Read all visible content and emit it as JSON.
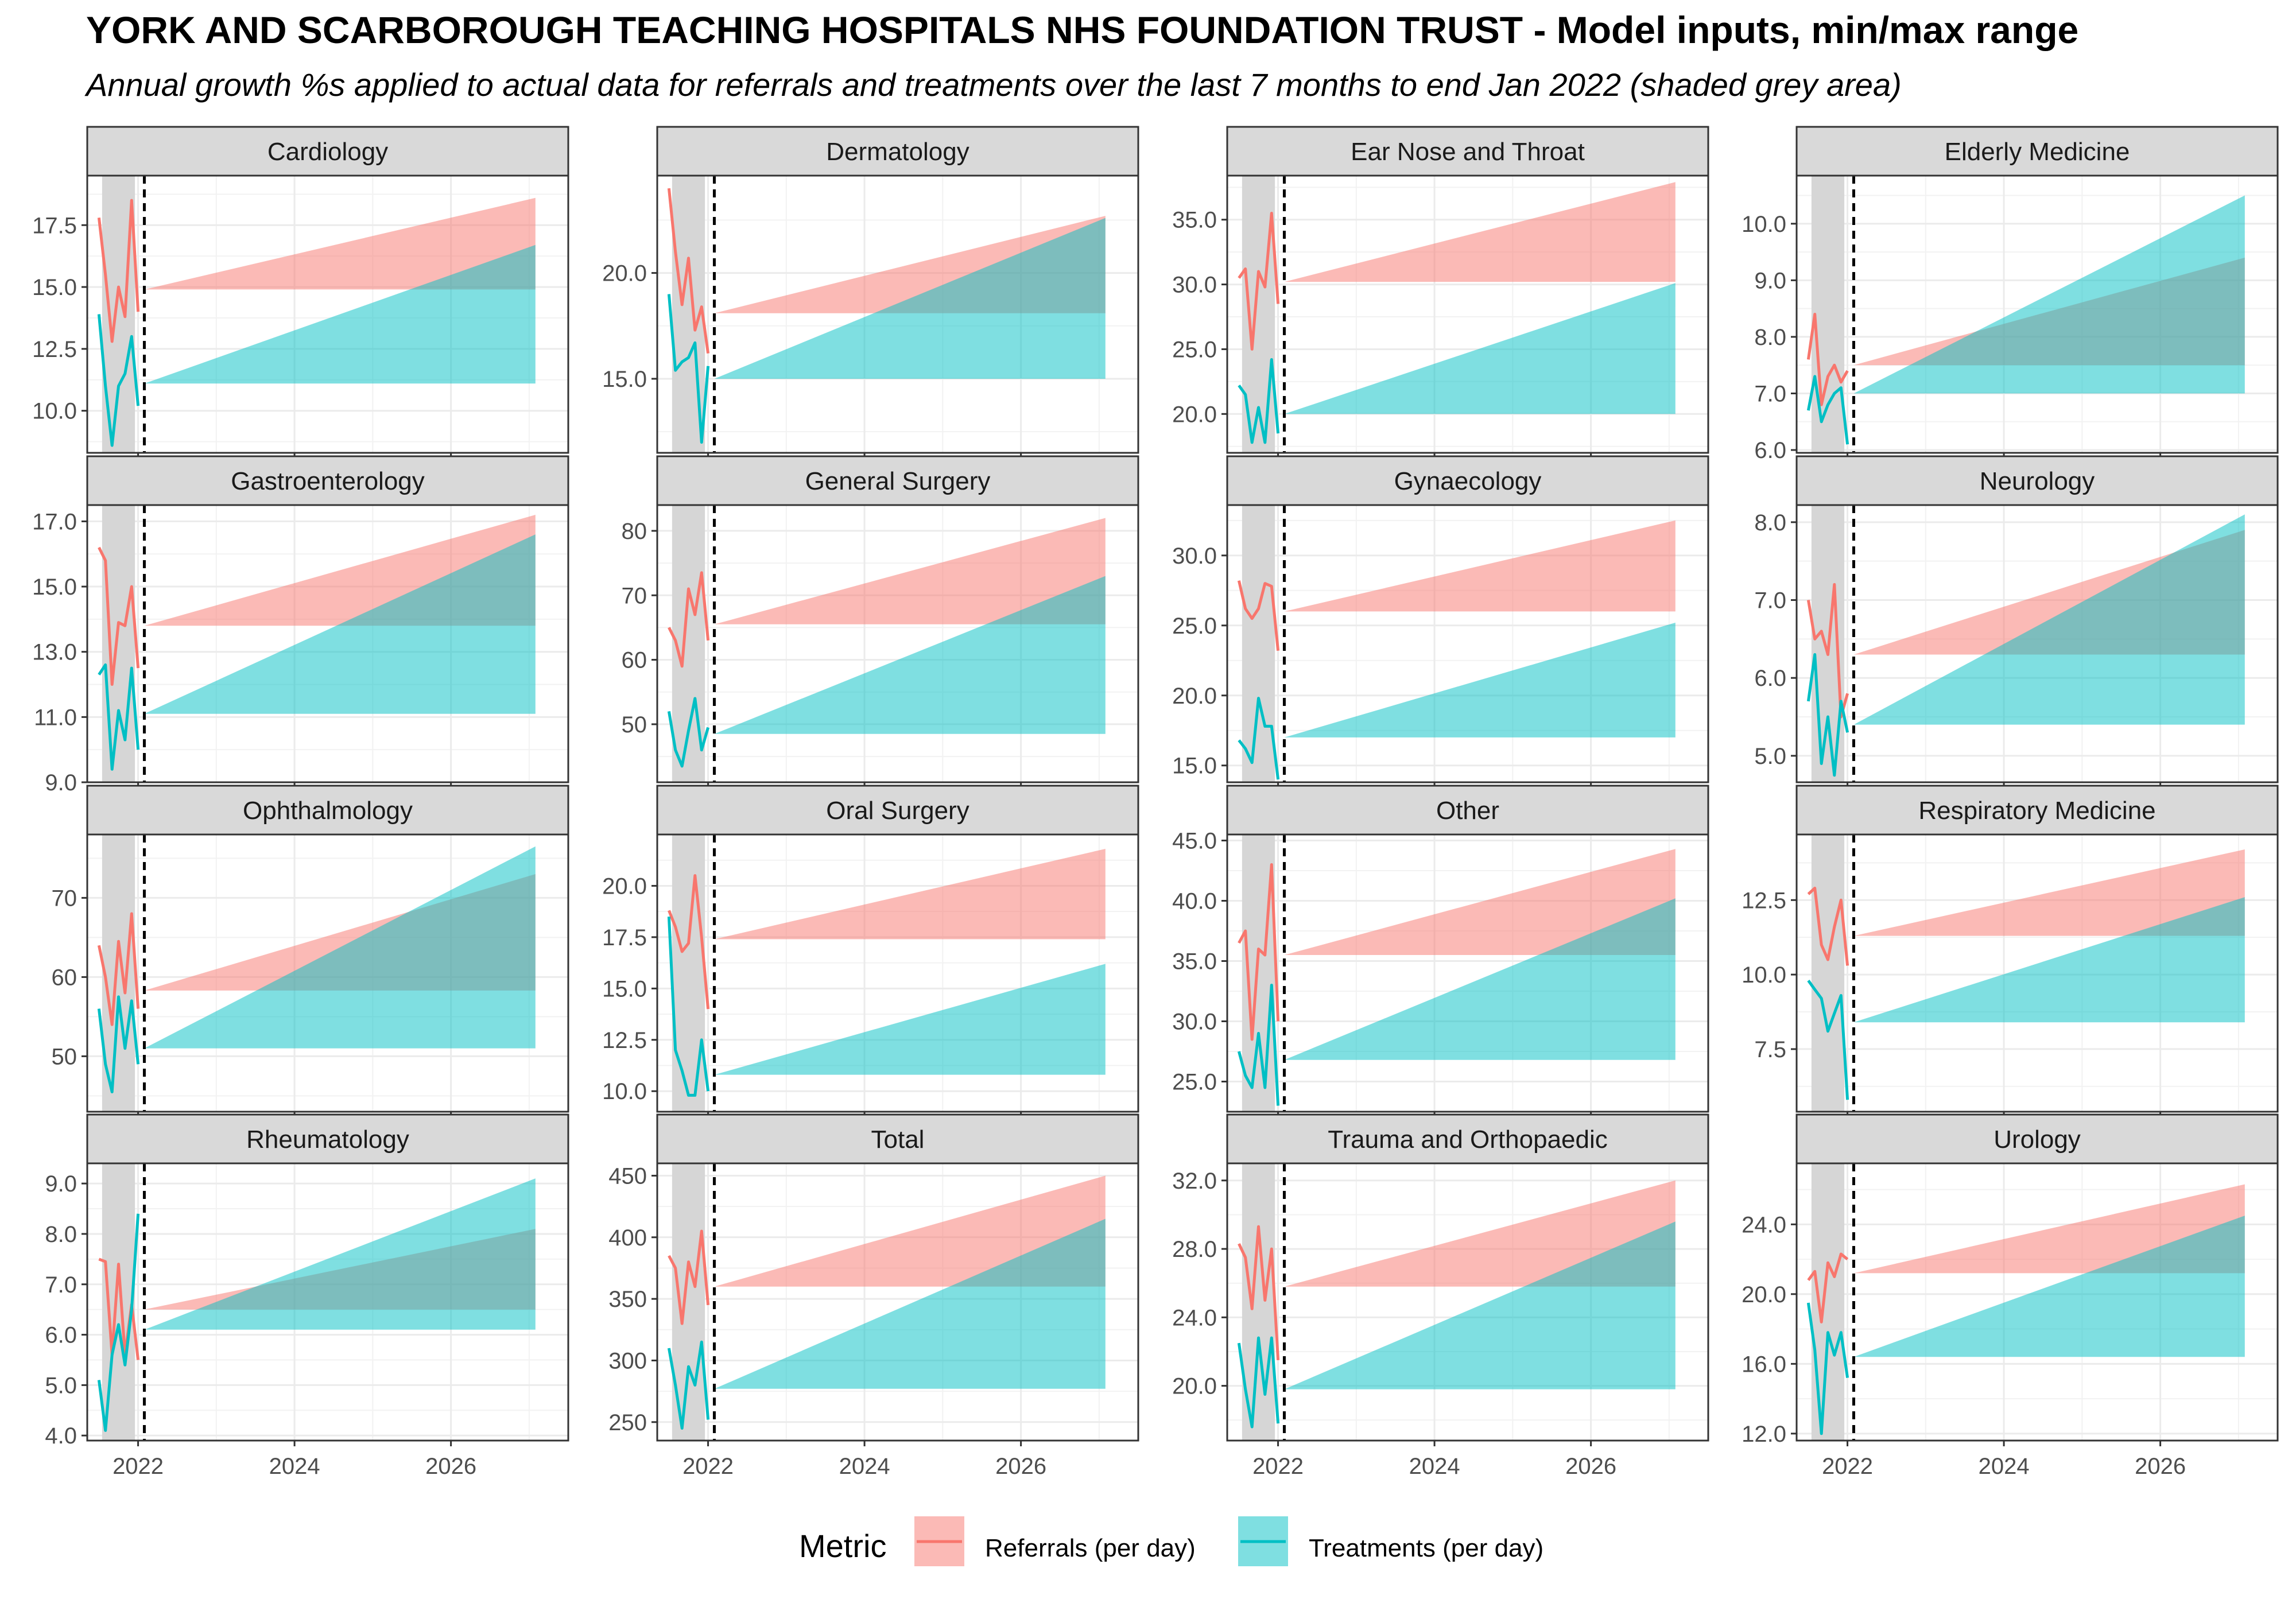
{
  "title": "YORK AND SCARBOROUGH TEACHING HOSPITALS NHS FOUNDATION TRUST - Model inputs, min/max range",
  "subtitle": "Annual growth %s applied to actual data for referrals and treatments over the last 7 months to end Jan 2022 (shaded grey area)",
  "legend": {
    "title": "Metric",
    "items": [
      {
        "label": "Referrals (per day)",
        "color": "#F8766D"
      },
      {
        "label": "Treatments (per day)",
        "color": "#00BFC4"
      }
    ]
  },
  "chart_data": {
    "type": "line",
    "facet_layout": "4x4 grid, free y scales, shared x axis",
    "x_axis": {
      "ticks": [
        2022,
        2024,
        2026
      ],
      "xlim": [
        2021.35,
        2027.5
      ]
    },
    "actual_months": [
      "2021-07",
      "2021-08",
      "2021-09",
      "2021-10",
      "2021-11",
      "2021-12",
      "2022-01"
    ],
    "actual_x": [
      2021.5,
      2021.583,
      2021.667,
      2021.75,
      2021.833,
      2021.917,
      2022.0
    ],
    "shaded_period": [
      2021.54,
      2021.96
    ],
    "forecast_start": 2022.08,
    "forecast_end": 2027.08,
    "projection_band_x": [
      2022.08,
      2027.08
    ],
    "series_colors": {
      "referrals": "#F8766D",
      "treatments": "#00BFC4"
    },
    "panels": [
      {
        "name": "Cardiology",
        "ylim": [
          8.3,
          19.5
        ],
        "ticks": [
          10.0,
          12.5,
          15.0,
          17.5
        ],
        "tick_labels": [
          "10.0",
          "12.5",
          "15.0",
          "17.5"
        ],
        "referrals": {
          "actual": [
            17.8,
            15.5,
            12.8,
            15.0,
            13.8,
            18.5,
            14.0
          ],
          "start": 14.9,
          "max_end": 18.6
        },
        "treatments": {
          "actual": [
            13.9,
            11.0,
            8.6,
            11.0,
            11.5,
            13.0,
            10.2
          ],
          "start": 11.1,
          "max_end": 16.7
        }
      },
      {
        "name": "Dermatology",
        "ylim": [
          11.5,
          24.6
        ],
        "ticks": [
          15.0,
          20.0
        ],
        "tick_labels": [
          "15.0",
          "20.0"
        ],
        "referrals": {
          "actual": [
            24.0,
            21.0,
            18.5,
            20.7,
            17.3,
            18.4,
            16.2
          ],
          "start": 18.1,
          "max_end": 22.7
        },
        "treatments": {
          "actual": [
            19.0,
            15.4,
            15.8,
            16.0,
            16.7,
            12.0,
            15.6
          ],
          "start": 15.0,
          "max_end": 22.6
        }
      },
      {
        "name": "Ear Nose and Throat",
        "ylim": [
          17.0,
          38.4
        ],
        "ticks": [
          20.0,
          25.0,
          30.0,
          35.0
        ],
        "tick_labels": [
          "20.0",
          "25.0",
          "30.0",
          "35.0"
        ],
        "referrals": {
          "actual": [
            30.5,
            31.2,
            25.0,
            31.0,
            29.8,
            35.5,
            28.5
          ],
          "start": 30.2,
          "max_end": 37.9
        },
        "treatments": {
          "actual": [
            22.2,
            21.5,
            17.8,
            20.5,
            17.8,
            24.2,
            18.5
          ],
          "start": 20.0,
          "max_end": 30.1
        }
      },
      {
        "name": "Elderly Medicine",
        "ylim": [
          5.95,
          10.85
        ],
        "ticks": [
          6.0,
          7.0,
          8.0,
          9.0,
          10.0
        ],
        "tick_labels": [
          "6.0",
          "7.0",
          "8.0",
          "9.0",
          "10.0"
        ],
        "referrals": {
          "actual": [
            7.6,
            8.4,
            6.8,
            7.3,
            7.5,
            7.2,
            7.4
          ],
          "start": 7.5,
          "max_end": 9.4
        },
        "treatments": {
          "actual": [
            6.7,
            7.3,
            6.5,
            6.8,
            7.0,
            7.1,
            6.1
          ],
          "start": 7.0,
          "max_end": 10.5
        }
      },
      {
        "name": "Gastroenterology",
        "ylim": [
          9.0,
          17.5
        ],
        "ticks": [
          9.0,
          11.0,
          13.0,
          15.0,
          17.0
        ],
        "tick_labels": [
          "9.0",
          "11.0",
          "13.0",
          "15.0",
          "17.0"
        ],
        "referrals": {
          "actual": [
            16.2,
            15.8,
            12.0,
            13.9,
            13.8,
            15.0,
            12.5
          ],
          "start": 13.8,
          "max_end": 17.2
        },
        "treatments": {
          "actual": [
            12.3,
            12.6,
            9.4,
            11.2,
            10.3,
            12.5,
            10.0
          ],
          "start": 11.1,
          "max_end": 16.6
        }
      },
      {
        "name": "General Surgery",
        "ylim": [
          41.0,
          84.0
        ],
        "ticks": [
          50,
          60,
          70,
          80
        ],
        "tick_labels": [
          "50",
          "60",
          "70",
          "80"
        ],
        "referrals": {
          "actual": [
            65.0,
            63.0,
            59.0,
            71.0,
            67.0,
            73.5,
            63.0
          ],
          "start": 65.5,
          "max_end": 82.0
        },
        "treatments": {
          "actual": [
            52.0,
            46.0,
            43.5,
            49.0,
            54.0,
            46.0,
            49.5
          ],
          "start": 48.5,
          "max_end": 73.0
        }
      },
      {
        "name": "Gynaecology",
        "ylim": [
          13.8,
          33.6
        ],
        "ticks": [
          15.0,
          20.0,
          25.0,
          30.0
        ],
        "tick_labels": [
          "15.0",
          "20.0",
          "25.0",
          "30.0"
        ],
        "referrals": {
          "actual": [
            28.2,
            26.2,
            25.5,
            26.2,
            28.0,
            27.8,
            23.2
          ],
          "start": 26.0,
          "max_end": 32.5
        },
        "treatments": {
          "actual": [
            16.8,
            16.2,
            15.2,
            19.8,
            17.8,
            17.8,
            14.0
          ],
          "start": 17.0,
          "max_end": 25.2
        }
      },
      {
        "name": "Neurology",
        "ylim": [
          4.66,
          8.22
        ],
        "ticks": [
          5.0,
          6.0,
          7.0,
          8.0
        ],
        "tick_labels": [
          "5.0",
          "6.0",
          "7.0",
          "8.0"
        ],
        "referrals": {
          "actual": [
            7.0,
            6.5,
            6.6,
            6.3,
            7.2,
            5.5,
            5.8
          ],
          "start": 6.3,
          "max_end": 7.9
        },
        "treatments": {
          "actual": [
            5.7,
            6.3,
            4.9,
            5.5,
            4.75,
            5.7,
            5.3
          ],
          "start": 5.4,
          "max_end": 8.1
        }
      },
      {
        "name": "Ophthalmology",
        "ylim": [
          43.0,
          78.0
        ],
        "ticks": [
          50,
          60,
          70
        ],
        "tick_labels": [
          "50",
          "60",
          "70"
        ],
        "referrals": {
          "actual": [
            64.0,
            60.0,
            54.0,
            64.5,
            58.0,
            68.0,
            56.0
          ],
          "start": 58.3,
          "max_end": 73.0
        },
        "treatments": {
          "actual": [
            56.0,
            49.0,
            45.5,
            57.5,
            51.0,
            57.0,
            49.0
          ],
          "start": 51.0,
          "max_end": 76.5
        }
      },
      {
        "name": "Oral Surgery",
        "ylim": [
          9.0,
          22.5
        ],
        "ticks": [
          10.0,
          12.5,
          15.0,
          17.5,
          20.0
        ],
        "tick_labels": [
          "10.0",
          "12.5",
          "15.0",
          "17.5",
          "20.0"
        ],
        "referrals": {
          "actual": [
            18.8,
            18.0,
            16.8,
            17.2,
            20.5,
            17.5,
            14.0
          ],
          "start": 17.4,
          "max_end": 21.8
        },
        "treatments": {
          "actual": [
            18.5,
            12.0,
            11.0,
            9.8,
            9.8,
            12.5,
            10.0
          ],
          "start": 10.8,
          "max_end": 16.2
        }
      },
      {
        "name": "Other",
        "ylim": [
          22.5,
          45.5
        ],
        "ticks": [
          25.0,
          30.0,
          35.0,
          40.0,
          45.0
        ],
        "tick_labels": [
          "25.0",
          "30.0",
          "35.0",
          "40.0",
          "45.0"
        ],
        "referrals": {
          "actual": [
            36.5,
            37.5,
            28.5,
            36.0,
            35.5,
            43.0,
            30.0
          ],
          "start": 35.5,
          "max_end": 44.3
        },
        "treatments": {
          "actual": [
            27.5,
            25.5,
            24.5,
            29.0,
            24.5,
            33.0,
            23.0
          ],
          "start": 26.8,
          "max_end": 40.2
        }
      },
      {
        "name": "Respiratory Medicine",
        "ylim": [
          5.4,
          14.7
        ],
        "ticks": [
          7.5,
          10.0,
          12.5
        ],
        "tick_labels": [
          "7.5",
          "10.0",
          "12.5"
        ],
        "referrals": {
          "actual": [
            12.7,
            12.9,
            11.0,
            10.5,
            11.6,
            12.5,
            10.3
          ],
          "start": 11.3,
          "max_end": 14.2
        },
        "treatments": {
          "actual": [
            9.8,
            9.5,
            9.2,
            8.1,
            8.7,
            9.3,
            5.8
          ],
          "start": 8.4,
          "max_end": 12.6
        }
      },
      {
        "name": "Rheumatology",
        "ylim": [
          3.9,
          9.4
        ],
        "ticks": [
          4.0,
          5.0,
          6.0,
          7.0,
          8.0,
          9.0
        ],
        "tick_labels": [
          "4.0",
          "5.0",
          "6.0",
          "7.0",
          "8.0",
          "9.0"
        ],
        "referrals": {
          "actual": [
            7.5,
            7.45,
            5.6,
            7.4,
            5.6,
            6.6,
            5.5
          ],
          "start": 6.5,
          "max_end": 8.1
        },
        "treatments": {
          "actual": [
            5.1,
            4.1,
            5.6,
            6.2,
            5.4,
            6.5,
            8.4
          ],
          "start": 6.1,
          "max_end": 9.1
        }
      },
      {
        "name": "Total",
        "ylim": [
          235.0,
          460.0
        ],
        "ticks": [
          250,
          300,
          350,
          400,
          450
        ],
        "tick_labels": [
          "250",
          "300",
          "350",
          "400",
          "450"
        ],
        "referrals": {
          "actual": [
            385.0,
            375.0,
            330.0,
            380.0,
            360.0,
            405.0,
            345.0
          ],
          "start": 360.0,
          "max_end": 450.0
        },
        "treatments": {
          "actual": [
            310.0,
            280.0,
            245.0,
            295.0,
            280.0,
            315.0,
            252.0
          ],
          "start": 277.0,
          "max_end": 415.0
        }
      },
      {
        "name": "Trauma and Orthopaedic",
        "ylim": [
          16.8,
          33.0
        ],
        "ticks": [
          20.0,
          24.0,
          28.0,
          32.0
        ],
        "tick_labels": [
          "20.0",
          "24.0",
          "28.0",
          "32.0"
        ],
        "referrals": {
          "actual": [
            28.3,
            27.5,
            24.5,
            29.3,
            25.0,
            28.0,
            21.5
          ],
          "start": 25.8,
          "max_end": 32.0
        },
        "treatments": {
          "actual": [
            22.5,
            19.8,
            17.6,
            22.8,
            19.5,
            22.8,
            17.8
          ],
          "start": 19.8,
          "max_end": 29.6
        }
      },
      {
        "name": "Urology",
        "ylim": [
          11.6,
          27.5
        ],
        "ticks": [
          12.0,
          16.0,
          20.0,
          24.0
        ],
        "tick_labels": [
          "12.0",
          "16.0",
          "20.0",
          "24.0"
        ],
        "referrals": {
          "actual": [
            20.8,
            21.3,
            18.4,
            21.8,
            21.0,
            22.3,
            22.0
          ],
          "start": 21.2,
          "max_end": 26.3
        },
        "treatments": {
          "actual": [
            19.5,
            16.8,
            12.0,
            17.8,
            16.5,
            17.8,
            15.2
          ],
          "start": 16.4,
          "max_end": 24.5
        }
      }
    ]
  }
}
